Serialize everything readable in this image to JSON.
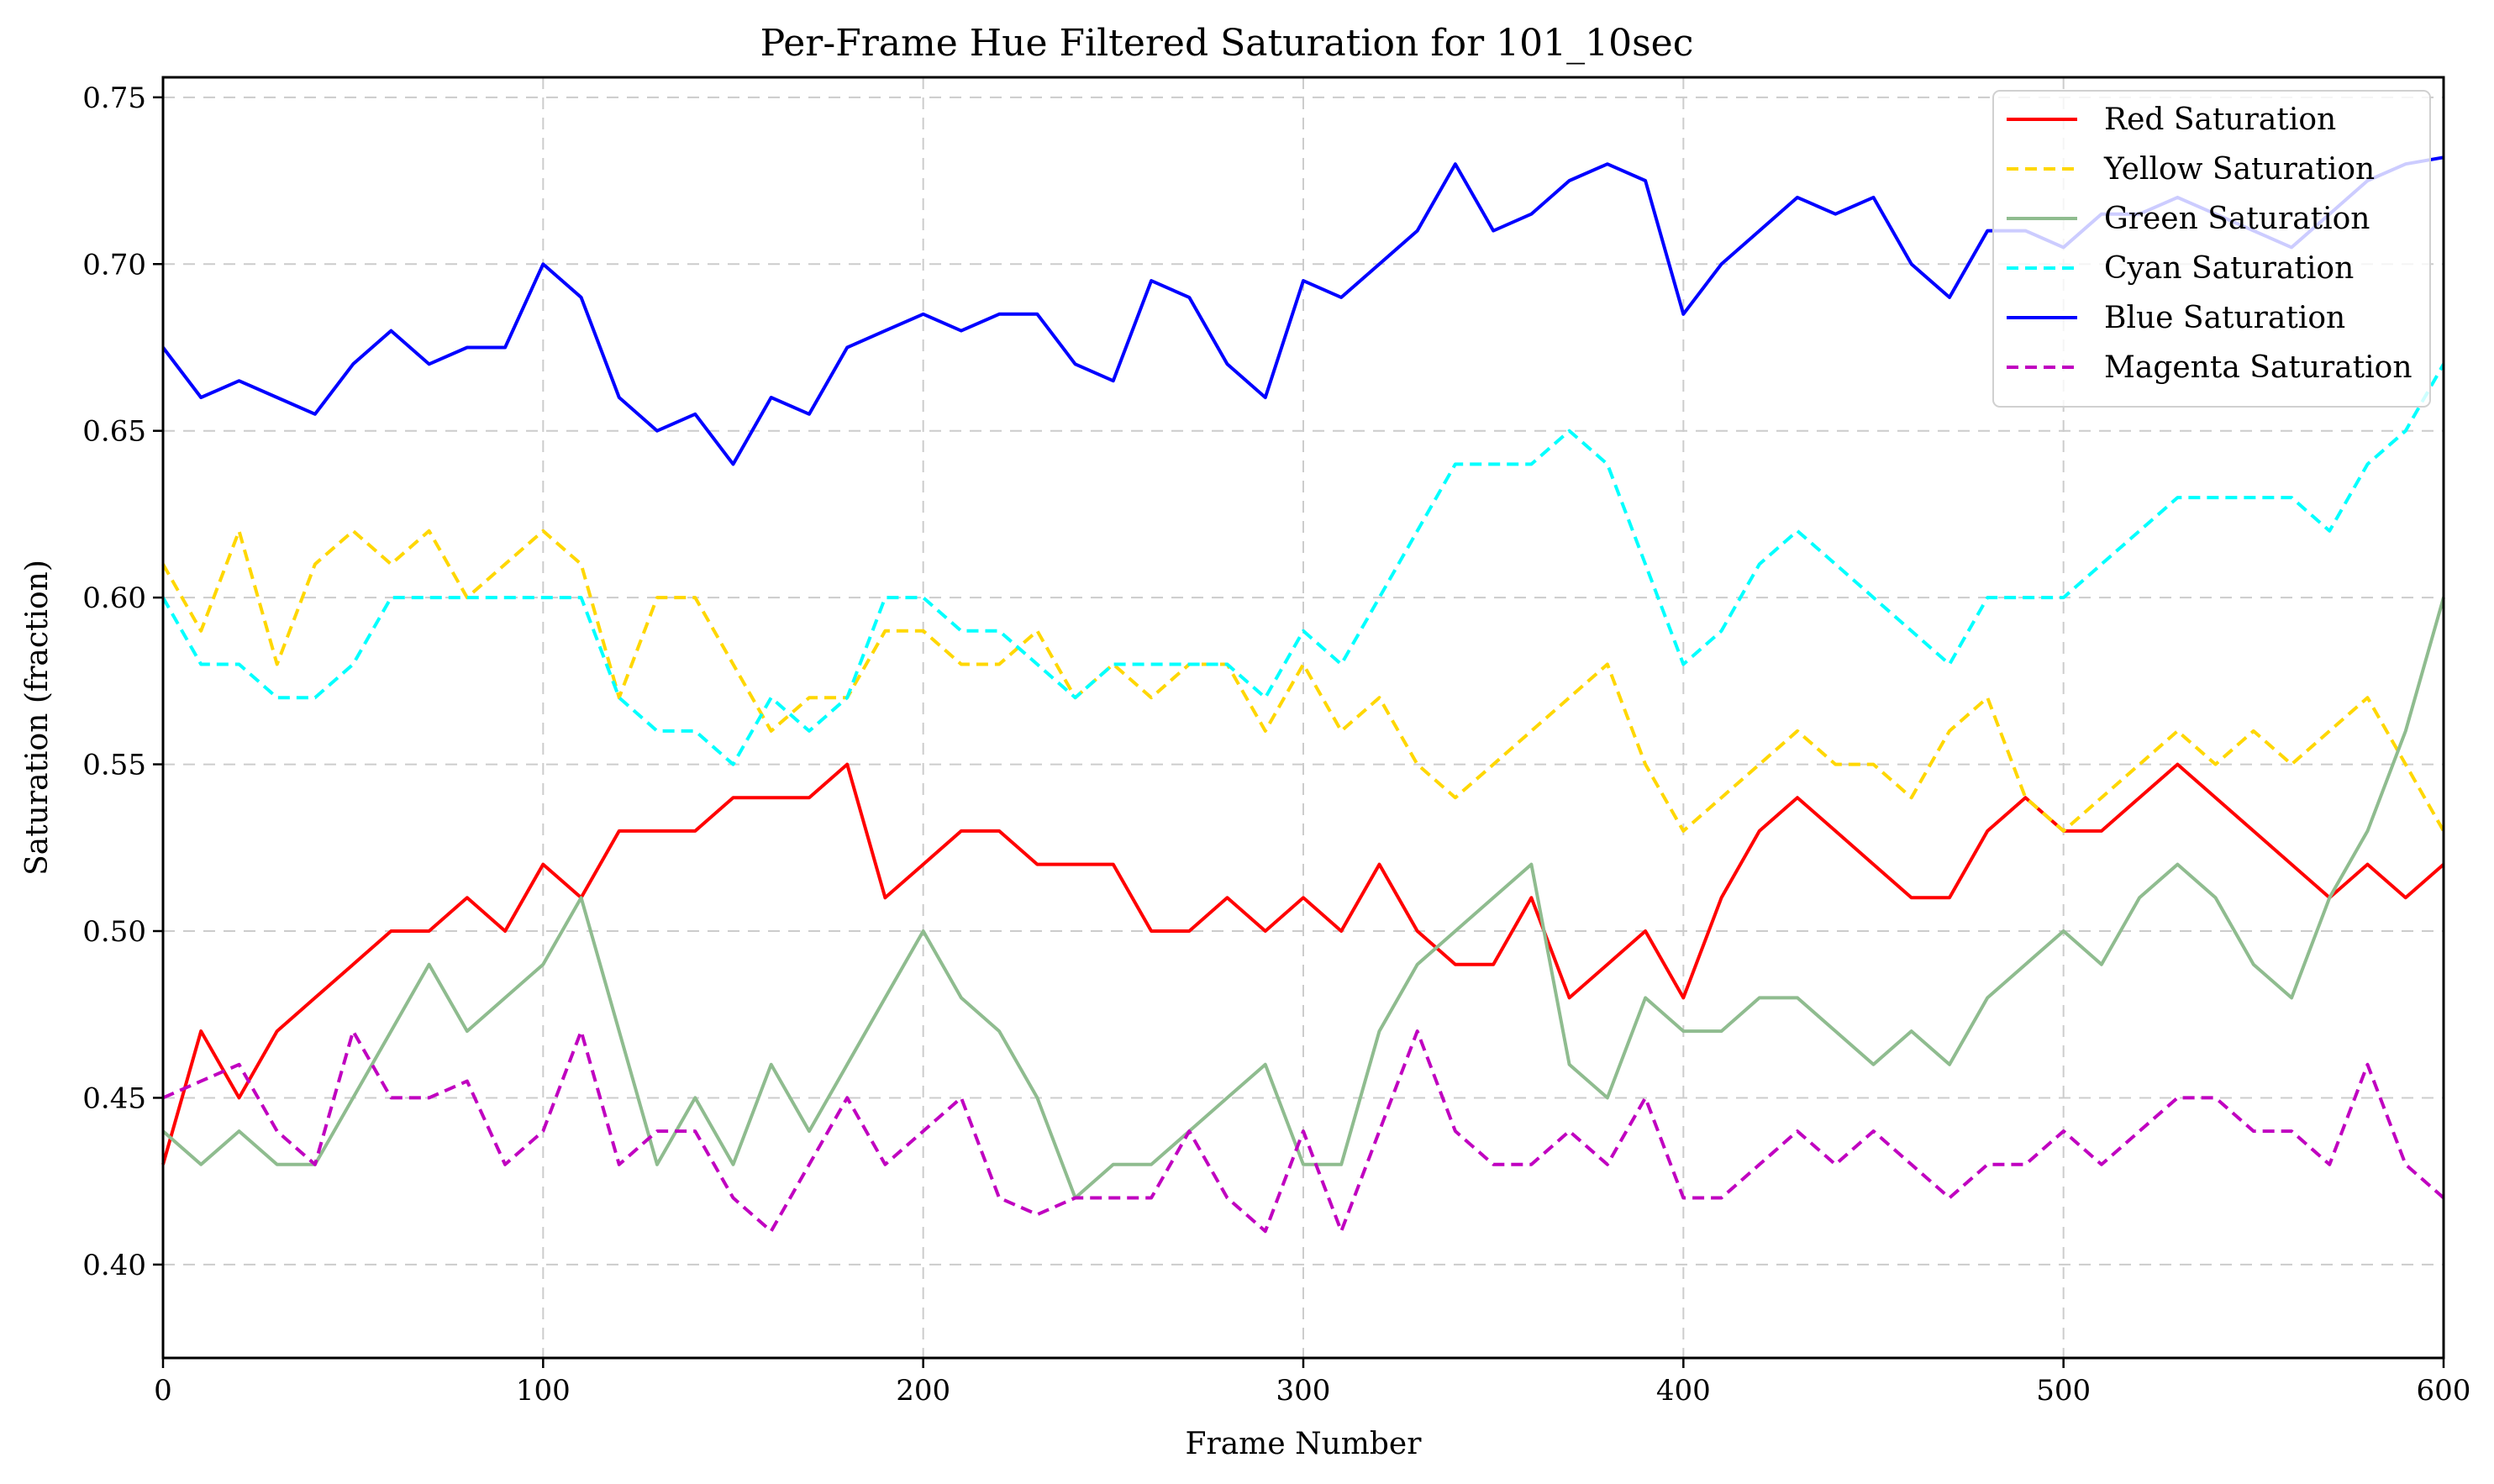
{
  "chart_data": {
    "type": "line",
    "title": "Per-Frame Hue Filtered Saturation for 101_10sec",
    "xlabel": "Frame Number",
    "ylabel": "Saturation (fraction)",
    "xlim": [
      0,
      600
    ],
    "ylim": [
      0.372,
      0.756
    ],
    "xticks": [
      0,
      100,
      200,
      300,
      400,
      500,
      600
    ],
    "yticks": [
      0.4,
      0.45,
      0.5,
      0.55,
      0.6,
      0.65,
      0.7,
      0.75
    ],
    "grid": true,
    "legend_position": "top-right",
    "series": [
      {
        "name": "Red Saturation",
        "color": "#ff0000",
        "dash": "solid",
        "x": [
          0,
          10,
          20,
          30,
          40,
          50,
          60,
          70,
          80,
          90,
          100,
          110,
          120,
          130,
          140,
          150,
          160,
          170,
          180,
          190,
          200,
          210,
          220,
          230,
          240,
          250,
          260,
          270,
          280,
          290,
          300,
          310,
          320,
          330,
          340,
          350,
          360,
          370,
          380,
          390,
          400,
          410,
          420,
          430,
          440,
          450,
          460,
          470,
          480,
          490,
          500,
          510,
          520,
          530,
          540,
          550,
          560,
          570,
          580,
          590,
          600
        ],
        "y": [
          0.43,
          0.47,
          0.45,
          0.47,
          0.48,
          0.49,
          0.5,
          0.5,
          0.51,
          0.5,
          0.52,
          0.51,
          0.53,
          0.53,
          0.53,
          0.54,
          0.54,
          0.54,
          0.55,
          0.51,
          0.52,
          0.53,
          0.53,
          0.52,
          0.52,
          0.52,
          0.5,
          0.5,
          0.51,
          0.5,
          0.51,
          0.5,
          0.52,
          0.5,
          0.49,
          0.49,
          0.51,
          0.48,
          0.49,
          0.5,
          0.48,
          0.51,
          0.53,
          0.54,
          0.53,
          0.52,
          0.51,
          0.51,
          0.53,
          0.54,
          0.53,
          0.53,
          0.54,
          0.55,
          0.54,
          0.53,
          0.52,
          0.51,
          0.52,
          0.51,
          0.52
        ]
      },
      {
        "name": "Yellow Saturation",
        "color": "#ffd700",
        "dash": "dashed",
        "x": [
          0,
          10,
          20,
          30,
          40,
          50,
          60,
          70,
          80,
          90,
          100,
          110,
          120,
          130,
          140,
          150,
          160,
          170,
          180,
          190,
          200,
          210,
          220,
          230,
          240,
          250,
          260,
          270,
          280,
          290,
          300,
          310,
          320,
          330,
          340,
          350,
          360,
          370,
          380,
          390,
          400,
          410,
          420,
          430,
          440,
          450,
          460,
          470,
          480,
          490,
          500,
          510,
          520,
          530,
          540,
          550,
          560,
          570,
          580,
          590,
          600
        ],
        "y": [
          0.61,
          0.59,
          0.62,
          0.58,
          0.61,
          0.62,
          0.61,
          0.62,
          0.6,
          0.61,
          0.62,
          0.61,
          0.57,
          0.6,
          0.6,
          0.58,
          0.56,
          0.57,
          0.57,
          0.59,
          0.59,
          0.58,
          0.58,
          0.59,
          0.57,
          0.58,
          0.57,
          0.58,
          0.58,
          0.56,
          0.58,
          0.56,
          0.57,
          0.55,
          0.54,
          0.55,
          0.56,
          0.57,
          0.58,
          0.55,
          0.53,
          0.54,
          0.55,
          0.56,
          0.55,
          0.55,
          0.54,
          0.56,
          0.57,
          0.54,
          0.53,
          0.54,
          0.55,
          0.56,
          0.55,
          0.56,
          0.55,
          0.56,
          0.57,
          0.55,
          0.53
        ]
      },
      {
        "name": "Green Saturation",
        "color": "#8fbc8f",
        "dash": "solid",
        "x": [
          0,
          10,
          20,
          30,
          40,
          50,
          60,
          70,
          80,
          90,
          100,
          110,
          120,
          130,
          140,
          150,
          160,
          170,
          180,
          190,
          200,
          210,
          220,
          230,
          240,
          250,
          260,
          270,
          280,
          290,
          300,
          310,
          320,
          330,
          340,
          350,
          360,
          370,
          380,
          390,
          400,
          410,
          420,
          430,
          440,
          450,
          460,
          470,
          480,
          490,
          500,
          510,
          520,
          530,
          540,
          550,
          560,
          570,
          580,
          590,
          600
        ],
        "y": [
          0.44,
          0.43,
          0.44,
          0.43,
          0.43,
          0.45,
          0.47,
          0.49,
          0.47,
          0.48,
          0.49,
          0.51,
          0.47,
          0.43,
          0.45,
          0.43,
          0.46,
          0.44,
          0.46,
          0.48,
          0.5,
          0.48,
          0.47,
          0.45,
          0.42,
          0.43,
          0.43,
          0.44,
          0.45,
          0.46,
          0.43,
          0.43,
          0.47,
          0.49,
          0.5,
          0.51,
          0.52,
          0.46,
          0.45,
          0.48,
          0.47,
          0.47,
          0.48,
          0.48,
          0.47,
          0.46,
          0.47,
          0.46,
          0.48,
          0.49,
          0.5,
          0.49,
          0.51,
          0.52,
          0.51,
          0.49,
          0.48,
          0.51,
          0.53,
          0.56,
          0.6
        ]
      },
      {
        "name": "Cyan Saturation",
        "color": "#00ffff",
        "dash": "dashed",
        "x": [
          0,
          10,
          20,
          30,
          40,
          50,
          60,
          70,
          80,
          90,
          100,
          110,
          120,
          130,
          140,
          150,
          160,
          170,
          180,
          190,
          200,
          210,
          220,
          230,
          240,
          250,
          260,
          270,
          280,
          290,
          300,
          310,
          320,
          330,
          340,
          350,
          360,
          370,
          380,
          390,
          400,
          410,
          420,
          430,
          440,
          450,
          460,
          470,
          480,
          490,
          500,
          510,
          520,
          530,
          540,
          550,
          560,
          570,
          580,
          590,
          600
        ],
        "y": [
          0.6,
          0.58,
          0.58,
          0.57,
          0.57,
          0.58,
          0.6,
          0.6,
          0.6,
          0.6,
          0.6,
          0.6,
          0.57,
          0.56,
          0.56,
          0.55,
          0.57,
          0.56,
          0.57,
          0.6,
          0.6,
          0.59,
          0.59,
          0.58,
          0.57,
          0.58,
          0.58,
          0.58,
          0.58,
          0.57,
          0.59,
          0.58,
          0.6,
          0.62,
          0.64,
          0.64,
          0.64,
          0.65,
          0.64,
          0.61,
          0.58,
          0.59,
          0.61,
          0.62,
          0.61,
          0.6,
          0.59,
          0.58,
          0.6,
          0.6,
          0.6,
          0.61,
          0.62,
          0.63,
          0.63,
          0.63,
          0.63,
          0.62,
          0.64,
          0.65,
          0.67
        ]
      },
      {
        "name": "Blue Saturation",
        "color": "#0000ff",
        "dash": "solid",
        "x": [
          0,
          10,
          20,
          30,
          40,
          50,
          60,
          70,
          80,
          90,
          100,
          110,
          120,
          130,
          140,
          150,
          160,
          170,
          180,
          190,
          200,
          210,
          220,
          230,
          240,
          250,
          260,
          270,
          280,
          290,
          300,
          310,
          320,
          330,
          340,
          350,
          360,
          370,
          380,
          390,
          400,
          410,
          420,
          430,
          440,
          450,
          460,
          470,
          480,
          490,
          500,
          510,
          520,
          530,
          540,
          550,
          560,
          570,
          580,
          590,
          600
        ],
        "y": [
          0.675,
          0.66,
          0.665,
          0.66,
          0.655,
          0.67,
          0.68,
          0.67,
          0.675,
          0.675,
          0.7,
          0.69,
          0.66,
          0.65,
          0.655,
          0.64,
          0.66,
          0.655,
          0.675,
          0.68,
          0.685,
          0.68,
          0.685,
          0.685,
          0.67,
          0.665,
          0.695,
          0.69,
          0.67,
          0.66,
          0.695,
          0.69,
          0.7,
          0.71,
          0.73,
          0.71,
          0.715,
          0.725,
          0.73,
          0.725,
          0.685,
          0.7,
          0.71,
          0.72,
          0.715,
          0.72,
          0.7,
          0.69,
          0.71,
          0.71,
          0.705,
          0.715,
          0.715,
          0.72,
          0.715,
          0.71,
          0.705,
          0.715,
          0.725,
          0.73,
          0.732
        ]
      },
      {
        "name": "Magenta Saturation",
        "color": "#c000c0",
        "dash": "dashed",
        "x": [
          0,
          10,
          20,
          30,
          40,
          50,
          60,
          70,
          80,
          90,
          100,
          110,
          120,
          130,
          140,
          150,
          160,
          170,
          180,
          190,
          200,
          210,
          220,
          230,
          240,
          250,
          260,
          270,
          280,
          290,
          300,
          310,
          320,
          330,
          340,
          350,
          360,
          370,
          380,
          390,
          400,
          410,
          420,
          430,
          440,
          450,
          460,
          470,
          480,
          490,
          500,
          510,
          520,
          530,
          540,
          550,
          560,
          570,
          580,
          590,
          600
        ],
        "y": [
          0.45,
          0.455,
          0.46,
          0.44,
          0.43,
          0.47,
          0.45,
          0.45,
          0.455,
          0.43,
          0.44,
          0.47,
          0.43,
          0.44,
          0.44,
          0.42,
          0.41,
          0.43,
          0.45,
          0.43,
          0.44,
          0.45,
          0.42,
          0.415,
          0.42,
          0.42,
          0.42,
          0.44,
          0.42,
          0.41,
          0.44,
          0.41,
          0.44,
          0.47,
          0.44,
          0.43,
          0.43,
          0.44,
          0.43,
          0.45,
          0.42,
          0.42,
          0.43,
          0.44,
          0.43,
          0.44,
          0.43,
          0.42,
          0.43,
          0.43,
          0.44,
          0.43,
          0.44,
          0.45,
          0.45,
          0.44,
          0.44,
          0.43,
          0.46,
          0.43,
          0.42
        ]
      }
    ]
  }
}
